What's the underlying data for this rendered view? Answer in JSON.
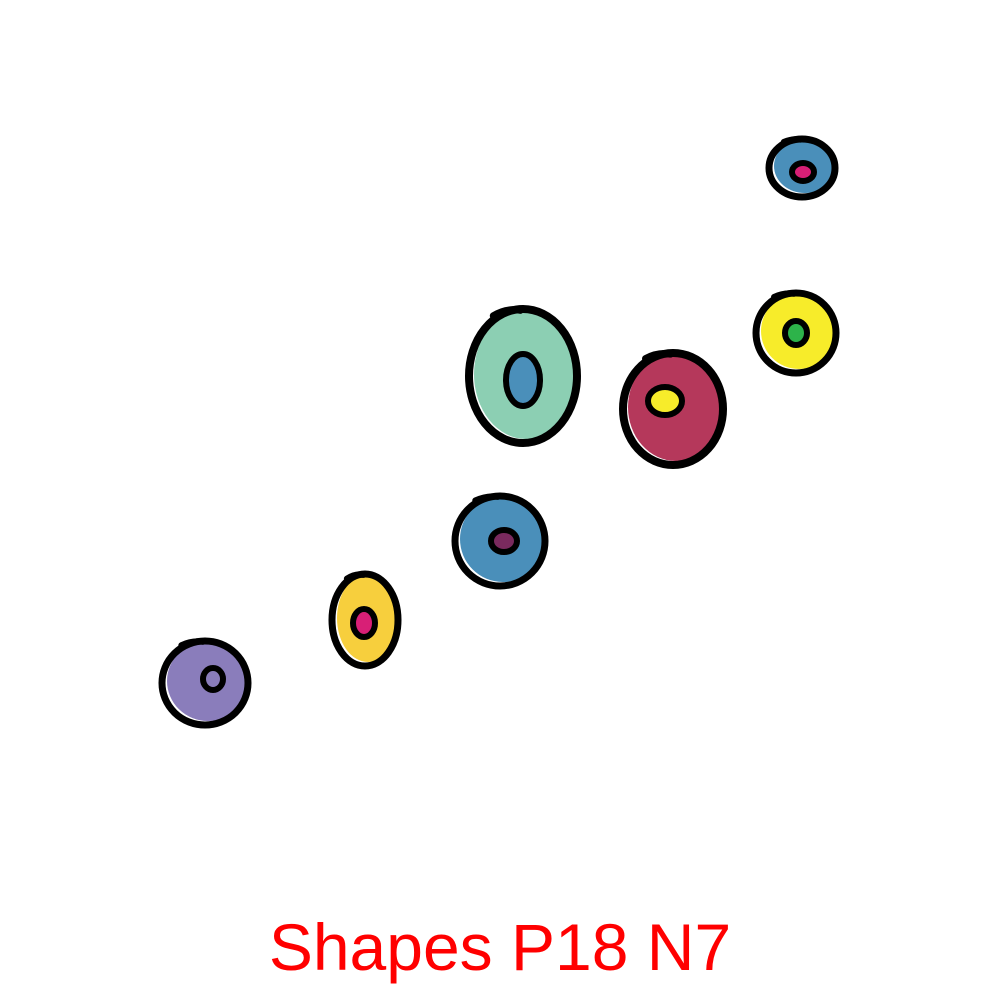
{
  "caption": "Shapes P18 N7",
  "colors": {
    "caption": "#ff0000",
    "outline": "#000000",
    "background": "#ffffff"
  },
  "shapes": [
    {
      "name": "purple-ring-shape",
      "fill": "#8a7dbb",
      "center": "#8a7dbb"
    },
    {
      "name": "yellow-ring-shape",
      "fill": "#f7cf3d",
      "center": "#d81f76"
    },
    {
      "name": "blue-ring-shape",
      "fill": "#4a8fba",
      "center": "#7a2a5e"
    },
    {
      "name": "teal-ring-shape",
      "fill": "#8ccfb3",
      "center": "#4a8fba"
    },
    {
      "name": "crimson-ring-shape",
      "fill": "#b5385b",
      "center": "#f7ec2a"
    },
    {
      "name": "bright-yellow-ring-shape",
      "fill": "#f7ec2a",
      "center": "#2db34a"
    },
    {
      "name": "small-blue-ring-shape",
      "fill": "#4a8fba",
      "center": "#d81f76"
    }
  ]
}
